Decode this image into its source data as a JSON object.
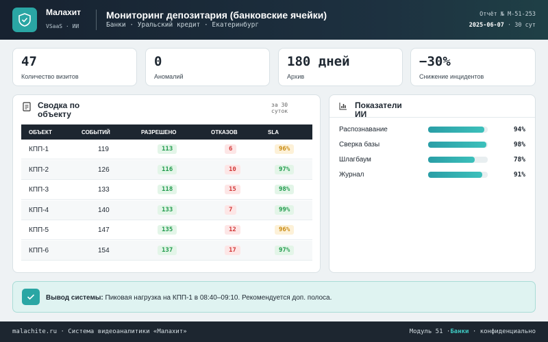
{
  "header": {
    "brand": "Малахит",
    "brand_sub": "VSaaS · ИИ",
    "title": "Мониторинг депозитария (банковские ячейки)",
    "subtitle": "Банки · Уральский кредит · Екатеринбург",
    "report": "Отчёт № М-51-253",
    "date": "2025-06-07",
    "period": "· 30 сут"
  },
  "kpis": [
    {
      "value": "47",
      "label": "Количество визитов"
    },
    {
      "value": "0",
      "label": "Аномалий"
    },
    {
      "value": "180 дней",
      "label": "Архив"
    },
    {
      "value": "−30%",
      "label": "Снижение инцидентов"
    }
  ],
  "table": {
    "title": "Сводка по объекту",
    "note": "за 30 суток",
    "columns": [
      "ОБЪЕКТ",
      "СОБЫТИЙ",
      "РАЗРЕШЕНО",
      "ОТКАЗОВ",
      "SLA"
    ],
    "rows": [
      [
        "КПП-1",
        "119",
        "113",
        "6",
        "96%"
      ],
      [
        "КПП-2",
        "126",
        "116",
        "10",
        "97%"
      ],
      [
        "КПП-3",
        "133",
        "118",
        "15",
        "98%"
      ],
      [
        "КПП-4",
        "140",
        "133",
        "7",
        "99%"
      ],
      [
        "КПП-5",
        "147",
        "135",
        "12",
        "96%"
      ],
      [
        "КПП-6",
        "154",
        "137",
        "17",
        "97%"
      ]
    ]
  },
  "ai": {
    "title": "Показатели ИИ",
    "items": [
      {
        "label": "Распознавание",
        "value": 94,
        "value_label": "94%"
      },
      {
        "label": "Сверка базы",
        "value": 98,
        "value_label": "98%"
      },
      {
        "label": "Шлагбаум",
        "value": 78,
        "value_label": "78%"
      },
      {
        "label": "Журнал",
        "value": 91,
        "value_label": "91%"
      }
    ]
  },
  "conclusion": {
    "heading": "Вывод системы:",
    "text": "Пиковая нагрузка на КПП-1 в 08:40–09:10. Рекомендуется доп. полоса."
  },
  "footer": {
    "left": "malachite.ru · Система видеоаналитики «Малахит»",
    "module": "Модуль 51 ·",
    "sector": "Банки",
    "tail": "· конфиденциально"
  }
}
